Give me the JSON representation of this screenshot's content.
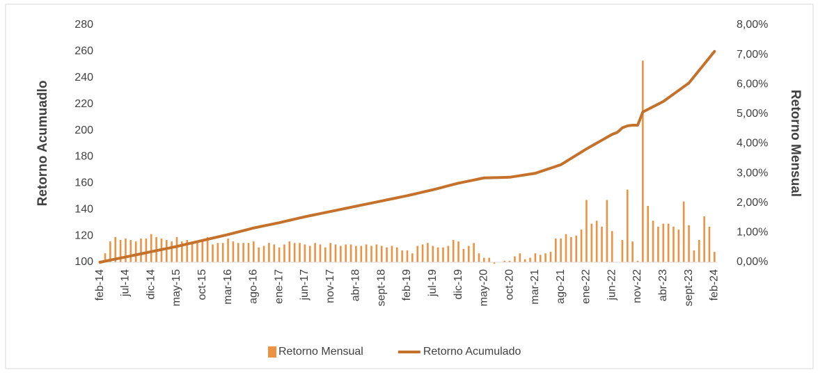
{
  "chart_data": {
    "type": "bar-line",
    "y_label": "Retorno Acumuadlo",
    "y2_label": "Retorno Mensual",
    "categories": [
      "feb-14",
      null,
      null,
      null,
      null,
      "jul-14",
      null,
      null,
      null,
      null,
      "dic-14",
      null,
      null,
      null,
      null,
      "may-15",
      null,
      null,
      null,
      null,
      "oct-15",
      null,
      null,
      null,
      null,
      "mar-16",
      null,
      null,
      null,
      null,
      "ago-16",
      null,
      null,
      null,
      null,
      "ene-17",
      null,
      null,
      null,
      null,
      "jun-17",
      null,
      null,
      null,
      null,
      "nov-17",
      null,
      null,
      null,
      null,
      "abr-18",
      null,
      null,
      null,
      null,
      "sept-18",
      null,
      null,
      null,
      null,
      "feb-19",
      null,
      null,
      null,
      null,
      "jul-19",
      null,
      null,
      null,
      null,
      "dic-19",
      null,
      null,
      null,
      null,
      "may-20",
      null,
      null,
      null,
      null,
      "oct-20",
      null,
      null,
      null,
      null,
      "mar-21",
      null,
      null,
      null,
      null,
      "ago-21",
      null,
      null,
      null,
      null,
      "ene-22",
      null,
      null,
      null,
      null,
      "jun-22",
      null,
      null,
      null,
      null,
      "nov-22",
      null,
      null,
      null,
      null,
      "abr-23",
      null,
      null,
      null,
      null,
      "sept-23",
      null,
      null,
      null,
      null,
      "feb-24"
    ],
    "series": [
      {
        "name": "Retorno Mensual",
        "kind": "bar",
        "axis": "y2",
        "color": "#ed9242",
        "values": [
          0.05,
          0.3,
          0.7,
          0.85,
          0.75,
          0.8,
          0.75,
          0.7,
          0.8,
          0.8,
          0.95,
          0.85,
          0.8,
          0.75,
          0.7,
          0.85,
          0.7,
          0.75,
          0.7,
          0.7,
          0.75,
          0.85,
          0.6,
          0.65,
          0.65,
          0.8,
          0.7,
          0.65,
          0.65,
          0.65,
          0.7,
          0.5,
          0.55,
          0.65,
          0.6,
          0.5,
          0.6,
          0.7,
          0.65,
          0.65,
          0.6,
          0.55,
          0.65,
          0.6,
          0.5,
          0.65,
          0.6,
          0.55,
          0.6,
          0.6,
          0.55,
          0.55,
          0.6,
          0.55,
          0.6,
          0.55,
          0.5,
          0.55,
          0.5,
          0.4,
          0.4,
          0.3,
          0.55,
          0.6,
          0.65,
          0.55,
          0.5,
          0.5,
          0.55,
          0.75,
          0.7,
          0.45,
          0.55,
          0.65,
          0.3,
          0.15,
          0.15,
          -0.05,
          0.0,
          0.05,
          0.05,
          0.2,
          0.3,
          0.1,
          0.15,
          0.3,
          0.25,
          0.3,
          0.35,
          0.8,
          0.8,
          0.95,
          0.85,
          0.9,
          1.1,
          2.1,
          1.3,
          1.4,
          1.2,
          2.1,
          1.05,
          0.0,
          0.75,
          2.45,
          0.7,
          0.05,
          6.8,
          1.9,
          1.4,
          1.2,
          1.3,
          1.3,
          1.2,
          1.1,
          2.05,
          1.25,
          0.4,
          0.75,
          1.55,
          1.2,
          0.35
        ]
      },
      {
        "name": "Retorno Acumulado",
        "kind": "line",
        "axis": "y",
        "color": "#c4712c",
        "values": [
          100,
          100.8,
          101.6,
          102.4,
          103.2,
          104,
          104.8,
          105.6,
          106.4,
          107.2,
          108,
          108.8,
          109.6,
          110.4,
          111.2,
          112,
          112.9,
          113.8,
          114.7,
          115.6,
          116.5,
          117.4,
          118.3,
          119.2,
          120.1,
          121,
          122,
          123,
          124,
          125,
          126,
          126.8,
          127.6,
          128.4,
          129.2,
          130,
          130.9,
          131.8,
          132.7,
          133.6,
          134.5,
          135.3,
          136.1,
          136.9,
          137.7,
          138.5,
          139.3,
          140.1,
          140.9,
          141.7,
          142.5,
          143.3,
          144.1,
          144.9,
          145.7,
          146.5,
          147.3,
          148.1,
          148.9,
          149.7,
          150.5,
          151.4,
          152.3,
          153.2,
          154.1,
          155,
          156,
          157,
          158,
          159,
          160,
          160.8,
          161.6,
          162.4,
          163.2,
          164,
          164.1,
          164.2,
          164.3,
          164.4,
          164.5,
          165.1,
          165.7,
          166.3,
          166.9,
          167.5,
          168.8,
          170.1,
          171.4,
          172.7,
          174,
          176.4,
          178.8,
          181.2,
          183.6,
          186,
          188.2,
          190.4,
          192.6,
          194.8,
          197,
          198.5,
          202,
          203.5,
          204,
          204,
          214,
          216,
          218,
          220,
          222,
          224.8,
          227.6,
          230.4,
          233.2,
          236,
          240.8,
          245.6,
          250.4,
          255.2,
          260
        ]
      }
    ],
    "ylim": [
      100,
      280
    ],
    "yticks": [
      100,
      120,
      140,
      160,
      180,
      200,
      220,
      240,
      260,
      280
    ],
    "y2lim": [
      0,
      8
    ],
    "y2ticks": [
      {
        "value": 0,
        "label": "0,00%"
      },
      {
        "value": 1,
        "label": "1,00%"
      },
      {
        "value": 2,
        "label": "2,00%"
      },
      {
        "value": 3,
        "label": "3,00%"
      },
      {
        "value": 4,
        "label": "4,00%"
      },
      {
        "value": 5,
        "label": "5,00%"
      },
      {
        "value": 6,
        "label": "6,00%"
      },
      {
        "value": 7,
        "label": "7,00%"
      },
      {
        "value": 8,
        "label": "8,00%"
      }
    ],
    "legend": "bottom"
  }
}
